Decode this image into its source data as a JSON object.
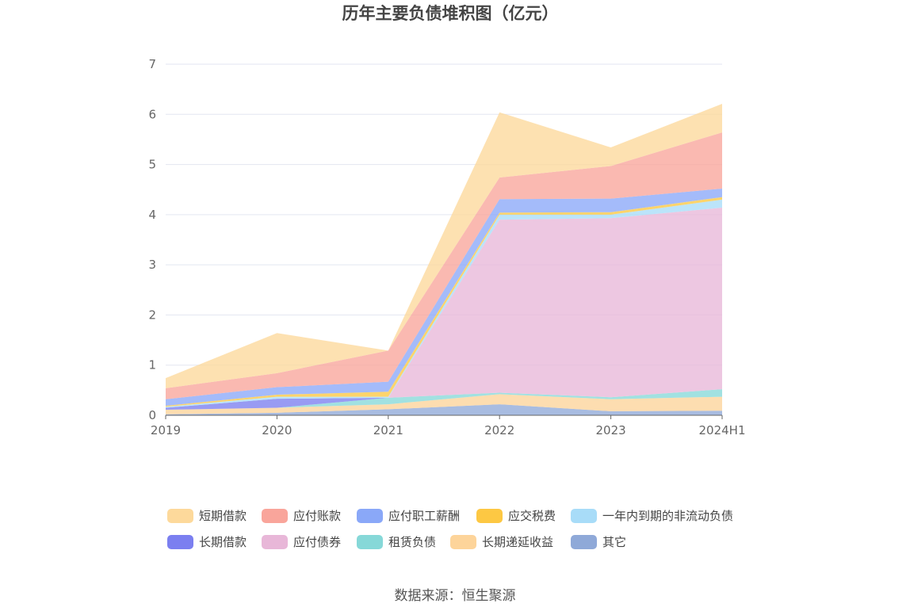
{
  "chart_data": {
    "type": "area",
    "stacked": true,
    "title": "历年主要负债堆积图（亿元）",
    "categories": [
      "2019",
      "2020",
      "2021",
      "2022",
      "2023",
      "2024H1"
    ],
    "ylim": [
      0,
      7
    ],
    "yticks": [
      0,
      1,
      2,
      3,
      4,
      5,
      6,
      7
    ],
    "grid": true,
    "legend_position": "bottom",
    "series": [
      {
        "name": "短期借款",
        "color": "#fdd99b",
        "values": [
          0.2,
          0.8,
          0.0,
          1.3,
          0.37,
          0.57
        ]
      },
      {
        "name": "应付账款",
        "color": "#f9a59b",
        "values": [
          0.22,
          0.28,
          0.62,
          0.43,
          0.65,
          1.12
        ]
      },
      {
        "name": "应付职工薪酬",
        "color": "#8aa8f8",
        "values": [
          0.13,
          0.15,
          0.2,
          0.27,
          0.27,
          0.17
        ]
      },
      {
        "name": "应交税费",
        "color": "#fdc843",
        "values": [
          0.02,
          0.04,
          0.1,
          0.04,
          0.05,
          0.05
        ]
      },
      {
        "name": "一年内到期的非流动负债",
        "color": "#a8dcf8",
        "values": [
          0.02,
          0.04,
          0.02,
          0.1,
          0.07,
          0.16
        ]
      },
      {
        "name": "长期借款",
        "color": "#7b7ff0",
        "values": [
          0.04,
          0.18,
          0.0,
          0.0,
          0.0,
          0.0
        ]
      },
      {
        "name": "应付债券",
        "color": "#e8b7d8",
        "values": [
          0.0,
          0.0,
          0.0,
          3.45,
          3.57,
          3.62
        ]
      },
      {
        "name": "租赁负债",
        "color": "#86d8d8",
        "values": [
          0.0,
          0.0,
          0.13,
          0.03,
          0.04,
          0.15
        ]
      },
      {
        "name": "长期递延收益",
        "color": "#fdd49a",
        "values": [
          0.09,
          0.1,
          0.1,
          0.2,
          0.24,
          0.28
        ]
      },
      {
        "name": "其它",
        "color": "#8fa9d8",
        "values": [
          0.02,
          0.05,
          0.12,
          0.22,
          0.08,
          0.09
        ]
      }
    ]
  },
  "source_text": "数据来源：恒生聚源"
}
